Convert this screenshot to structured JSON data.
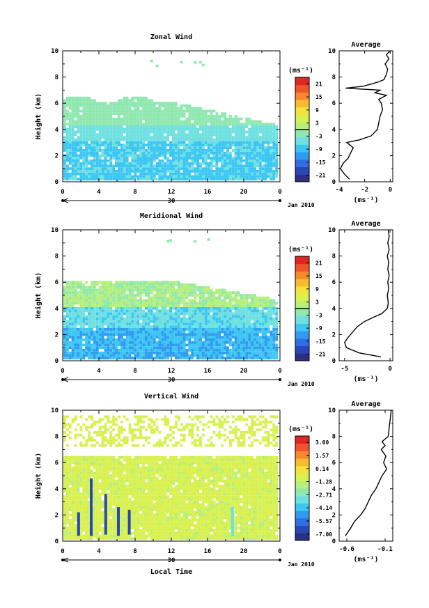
{
  "chart_data": [
    {
      "type": "heatmap",
      "title": "Zonal Wind",
      "xlabel": "",
      "ylabel": "Height (km)",
      "xlim": [
        0,
        24
      ],
      "ylim": [
        0,
        10
      ],
      "x_ticks": [
        "0",
        "4",
        "8",
        "12",
        "16",
        "20",
        "0"
      ],
      "y_ticks": [
        "0",
        "2",
        "4",
        "6",
        "8",
        "10"
      ],
      "date_axis": {
        "day_label": "30",
        "month_label": "Jan 2010"
      },
      "colorbar": {
        "unit_label": "(ms⁻¹)",
        "tick_labels": [
          "21",
          "15",
          "9",
          "3",
          "-3",
          "-9",
          "-15",
          "-21"
        ],
        "range": [
          -24,
          24
        ]
      },
      "average_profile": {
        "title": "Average",
        "xlabel": "(ms⁻¹)",
        "x_ticks": [
          "-4",
          "-2",
          "0"
        ],
        "xlim": [
          -4,
          0.2
        ],
        "ylim": [
          0,
          10
        ],
        "y_ticks": [
          "0",
          "2",
          "4",
          "6",
          "8",
          "10"
        ],
        "points": [
          [
            -3.2,
            0.2
          ],
          [
            -3.6,
            0.6
          ],
          [
            -3.9,
            1.0
          ],
          [
            -3.7,
            1.4
          ],
          [
            -3.3,
            1.8
          ],
          [
            -3.1,
            2.2
          ],
          [
            -2.9,
            2.6
          ],
          [
            -3.4,
            3.0
          ],
          [
            -2.4,
            3.2
          ],
          [
            -1.5,
            3.5
          ],
          [
            -1.0,
            4.0
          ],
          [
            -0.9,
            4.5
          ],
          [
            -0.8,
            5.0
          ],
          [
            -0.6,
            5.5
          ],
          [
            -0.7,
            6.0
          ],
          [
            -0.9,
            6.3
          ],
          [
            -0.3,
            6.6
          ],
          [
            -1.2,
            6.8
          ],
          [
            -0.8,
            7.0
          ],
          [
            -3.5,
            7.15
          ],
          [
            -2.1,
            7.3
          ],
          [
            -1.0,
            7.6
          ],
          [
            -0.5,
            7.8
          ],
          [
            -0.3,
            8.2
          ],
          [
            -0.2,
            8.6
          ],
          [
            -0.4,
            9.0
          ],
          [
            -0.1,
            9.4
          ],
          [
            -0.3,
            9.7
          ],
          [
            0.0,
            10.0
          ]
        ]
      }
    },
    {
      "type": "heatmap",
      "title": "Meridional Wind",
      "xlabel": "",
      "ylabel": "Height (km)",
      "xlim": [
        0,
        24
      ],
      "ylim": [
        0,
        10
      ],
      "x_ticks": [
        "0",
        "4",
        "8",
        "12",
        "16",
        "20",
        "0"
      ],
      "y_ticks": [
        "0",
        "2",
        "4",
        "6",
        "8",
        "10"
      ],
      "date_axis": {
        "day_label": "30",
        "month_label": "Jan 2010"
      },
      "colorbar": {
        "unit_label": "(ms⁻¹)",
        "tick_labels": [
          "21",
          "15",
          "9",
          "3",
          "-3",
          "-9",
          "-15",
          "-21"
        ],
        "range": [
          -24,
          24
        ]
      },
      "average_profile": {
        "title": "Average",
        "xlabel": "(ms⁻¹)",
        "x_ticks": [
          "-5",
          "0"
        ],
        "xlim": [
          -5.6,
          0.3
        ],
        "ylim": [
          0,
          10
        ],
        "y_ticks": [
          "0",
          "2",
          "4",
          "6",
          "8",
          "10"
        ],
        "points": [
          [
            -1.0,
            0.3
          ],
          [
            -3.4,
            0.6
          ],
          [
            -4.8,
            1.0
          ],
          [
            -5.0,
            1.4
          ],
          [
            -4.6,
            1.8
          ],
          [
            -4.1,
            2.2
          ],
          [
            -3.6,
            2.6
          ],
          [
            -2.8,
            3.0
          ],
          [
            -1.9,
            3.3
          ],
          [
            -0.9,
            3.6
          ],
          [
            -0.3,
            4.0
          ],
          [
            -0.2,
            4.4
          ],
          [
            -0.3,
            5.0
          ],
          [
            -0.15,
            5.5
          ],
          [
            -0.25,
            6.0
          ],
          [
            -0.1,
            6.5
          ],
          [
            -0.25,
            7.0
          ],
          [
            -0.15,
            7.5
          ],
          [
            -0.3,
            8.0
          ],
          [
            -0.1,
            8.5
          ],
          [
            -0.25,
            9.0
          ],
          [
            -0.1,
            9.5
          ],
          [
            -0.2,
            10.0
          ]
        ]
      }
    },
    {
      "type": "heatmap",
      "title": "Vertical Wind",
      "xlabel": "Local Time",
      "ylabel": "Height (km)",
      "xlim": [
        0,
        24
      ],
      "ylim": [
        0,
        10
      ],
      "x_ticks": [
        "0",
        "4",
        "8",
        "12",
        "16",
        "20",
        "0"
      ],
      "y_ticks": [
        "0",
        "2",
        "4",
        "6",
        "8",
        "10"
      ],
      "date_axis": {
        "day_label": "30",
        "month_label": "Jan 2010"
      },
      "colorbar": {
        "unit_label": "(ms⁻¹)",
        "tick_labels": [
          "3.00",
          "1.57",
          "0.14",
          "-1.28",
          "-2.71",
          "-4.14",
          "-5.57",
          "-7.00"
        ],
        "range": [
          -7.7,
          3.7
        ]
      },
      "average_profile": {
        "title": "Average",
        "xlabel": "(ms⁻¹)",
        "x_ticks": [
          "-0.6",
          "-0.1"
        ],
        "xlim": [
          -0.7,
          0.0
        ],
        "ylim": [
          0,
          10
        ],
        "y_ticks": [
          "0",
          "2",
          "4",
          "6",
          "8",
          "10"
        ],
        "points": [
          [
            -0.62,
            0.4
          ],
          [
            -0.55,
            1.0
          ],
          [
            -0.5,
            1.5
          ],
          [
            -0.42,
            2.0
          ],
          [
            -0.36,
            2.5
          ],
          [
            -0.32,
            3.0
          ],
          [
            -0.28,
            3.5
          ],
          [
            -0.22,
            4.0
          ],
          [
            -0.18,
            4.5
          ],
          [
            -0.14,
            5.0
          ],
          [
            -0.08,
            5.5
          ],
          [
            -0.12,
            6.0
          ],
          [
            -0.09,
            6.5
          ],
          [
            -0.15,
            7.0
          ],
          [
            -0.1,
            7.3
          ],
          [
            -0.14,
            7.6
          ],
          [
            -0.06,
            8.0
          ],
          [
            -0.05,
            8.5
          ],
          [
            -0.04,
            9.0
          ],
          [
            -0.03,
            9.5
          ],
          [
            -0.02,
            10.0
          ]
        ]
      }
    }
  ]
}
